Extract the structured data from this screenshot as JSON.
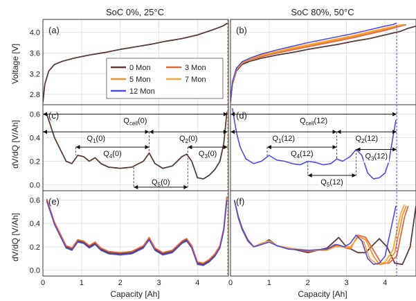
{
  "titles": {
    "left": "SoC 0%, 25°C",
    "right": "SoC 80%, 50°C"
  },
  "axes": {
    "voltage_ylabel": "Voltage [V]",
    "dvdq_ylabel": "dV/dQ [V/Ah]",
    "xlabel": "Capacity [Ah]"
  },
  "panel_labels": {
    "a": "(a)",
    "b": "(b)",
    "c": "(c)",
    "d": "(d)",
    "e": "(e)",
    "f": "(f)"
  },
  "legend": [
    {
      "name": "0 Mon",
      "color": "#5c3a36"
    },
    {
      "name": "3 Mon",
      "color": "#e8673a"
    },
    {
      "name": "5 Mon",
      "color": "#f0902e"
    },
    {
      "name": "7 Mon",
      "color": "#f6a83a"
    },
    {
      "name": "12 Mon",
      "color": "#4e4be0"
    }
  ],
  "annotations_left": {
    "qcell": "Q_cell(0)",
    "q1": "Q_1(0)",
    "q2": "Q_2(0)",
    "q3": "Q_3(0)",
    "q4": "Q_4(0)",
    "q5": "Q_5(0)"
  },
  "annotations_right": {
    "qcell": "Q_cell(12)",
    "q1": "Q_1(12)",
    "q2": "Q_2(12)",
    "q3": "Q_3(12)",
    "q4": "Q_4(12)",
    "q5": "Q_5(12)"
  },
  "chart_data": [
    {
      "type": "line",
      "panel": "(a)",
      "title": "SoC 0%, 25°C",
      "xlabel": "",
      "ylabel": "Voltage [V]",
      "xlim": [
        0,
        4.8
      ],
      "ylim": [
        2.6,
        4.25
      ],
      "xticks": [
        0,
        1,
        2,
        3,
        4
      ],
      "yticks": [
        2.8,
        3.2,
        3.6,
        4.0
      ],
      "grid": true,
      "legend_position": "center",
      "series": [
        {
          "name": "0 Mon",
          "x": [
            0,
            0.05,
            0.15,
            0.3,
            0.5,
            0.8,
            1.2,
            1.6,
            2.0,
            2.4,
            2.8,
            3.2,
            3.6,
            4.0,
            4.4,
            4.65,
            4.78
          ],
          "y": [
            2.65,
            3.0,
            3.25,
            3.38,
            3.44,
            3.5,
            3.56,
            3.61,
            3.67,
            3.72,
            3.77,
            3.83,
            3.88,
            3.95,
            4.05,
            4.12,
            4.18
          ]
        }
      ]
    },
    {
      "type": "line",
      "panel": "(b)",
      "title": "SoC 80%, 50°C",
      "xlabel": "",
      "ylabel": "",
      "xlim": [
        0,
        4.8
      ],
      "ylim": [
        2.6,
        4.25
      ],
      "xticks": [
        0,
        1,
        2,
        3,
        4
      ],
      "yticks": [
        2.8,
        3.2,
        3.6,
        4.0
      ],
      "grid": true,
      "series": [
        {
          "name": "0 Mon",
          "x": [
            0,
            0.05,
            0.15,
            0.3,
            0.5,
            0.8,
            1.2,
            1.6,
            2.0,
            2.4,
            2.8,
            3.2,
            3.6,
            4.0,
            4.4,
            4.6,
            4.8
          ],
          "y": [
            2.65,
            3.0,
            3.25,
            3.38,
            3.44,
            3.5,
            3.56,
            3.61,
            3.67,
            3.72,
            3.77,
            3.83,
            3.88,
            3.95,
            4.02,
            4.08,
            4.12
          ]
        },
        {
          "name": "3 Mon",
          "x": [
            0,
            0.05,
            0.15,
            0.3,
            0.5,
            0.8,
            1.2,
            1.6,
            2.0,
            2.4,
            2.8,
            3.2,
            3.6,
            4.0,
            4.3,
            4.55
          ],
          "y": [
            2.65,
            3.02,
            3.27,
            3.4,
            3.47,
            3.53,
            3.6,
            3.66,
            3.72,
            3.78,
            3.84,
            3.9,
            3.97,
            4.04,
            4.1,
            4.15
          ]
        },
        {
          "name": "5 Mon",
          "x": [
            0,
            0.05,
            0.15,
            0.3,
            0.5,
            0.8,
            1.2,
            1.6,
            2.0,
            2.4,
            2.8,
            3.2,
            3.6,
            4.0,
            4.3,
            4.5
          ],
          "y": [
            2.65,
            3.03,
            3.28,
            3.41,
            3.48,
            3.55,
            3.62,
            3.68,
            3.74,
            3.8,
            3.86,
            3.92,
            3.99,
            4.06,
            4.12,
            4.15
          ]
        },
        {
          "name": "7 Mon",
          "x": [
            0,
            0.05,
            0.15,
            0.3,
            0.5,
            0.8,
            1.2,
            1.6,
            2.0,
            2.4,
            2.8,
            3.2,
            3.6,
            4.0,
            4.25,
            4.45
          ],
          "y": [
            2.65,
            3.04,
            3.29,
            3.42,
            3.49,
            3.56,
            3.63,
            3.7,
            3.76,
            3.82,
            3.88,
            3.94,
            4.01,
            4.08,
            4.12,
            4.15
          ]
        },
        {
          "name": "12 Mon",
          "x": [
            0,
            0.05,
            0.15,
            0.3,
            0.5,
            0.8,
            1.2,
            1.6,
            2.0,
            2.4,
            2.8,
            3.2,
            3.6,
            4.0,
            4.2,
            4.3
          ],
          "y": [
            2.65,
            3.05,
            3.3,
            3.43,
            3.5,
            3.58,
            3.66,
            3.73,
            3.8,
            3.86,
            3.92,
            3.98,
            4.05,
            4.12,
            4.15,
            4.18
          ]
        }
      ]
    },
    {
      "type": "line",
      "panel": "(c)",
      "xlabel": "",
      "ylabel": "dV/dQ [V/Ah]",
      "xlim": [
        0,
        4.8
      ],
      "ylim": [
        -0.05,
        0.68
      ],
      "xticks": [
        0,
        1,
        2,
        3,
        4
      ],
      "yticks": [
        0.0,
        0.2,
        0.4,
        0.6
      ],
      "grid": true,
      "series": [
        {
          "name": "0 Mon",
          "x": [
            0.1,
            0.2,
            0.3,
            0.45,
            0.6,
            0.75,
            0.9,
            1.05,
            1.2,
            1.35,
            1.5,
            1.7,
            2.0,
            2.3,
            2.6,
            2.75,
            2.9,
            3.1,
            3.35,
            3.6,
            3.72,
            3.85,
            4.0,
            4.15,
            4.3,
            4.45,
            4.58,
            4.68,
            4.76
          ],
          "y": [
            0.6,
            0.5,
            0.4,
            0.3,
            0.2,
            0.18,
            0.25,
            0.24,
            0.2,
            0.23,
            0.18,
            0.15,
            0.14,
            0.15,
            0.2,
            0.27,
            0.18,
            0.14,
            0.16,
            0.24,
            0.26,
            0.2,
            0.06,
            0.05,
            0.08,
            0.13,
            0.2,
            0.35,
            0.62
          ]
        }
      ]
    },
    {
      "type": "line",
      "panel": "(d)",
      "xlabel": "",
      "ylabel": "",
      "xlim": [
        0,
        4.8
      ],
      "ylim": [
        -0.05,
        0.68
      ],
      "xticks": [
        0,
        1,
        2,
        3,
        4
      ],
      "yticks": [
        0.0,
        0.2,
        0.4,
        0.6
      ],
      "grid": true,
      "series": [
        {
          "name": "12 Mon",
          "x": [
            0.05,
            0.15,
            0.25,
            0.4,
            0.6,
            0.8,
            1.0,
            1.2,
            1.4,
            1.6,
            1.8,
            2.0,
            2.2,
            2.4,
            2.6,
            2.75,
            2.9,
            3.1,
            3.25,
            3.4,
            3.55,
            3.7,
            3.85,
            4.0,
            4.1,
            4.2,
            4.28
          ],
          "y": [
            0.65,
            0.45,
            0.32,
            0.22,
            0.18,
            0.2,
            0.25,
            0.21,
            0.2,
            0.18,
            0.17,
            0.2,
            0.19,
            0.17,
            0.18,
            0.22,
            0.2,
            0.24,
            0.3,
            0.25,
            0.1,
            0.05,
            0.06,
            0.1,
            0.2,
            0.4,
            0.55
          ]
        }
      ]
    },
    {
      "type": "line",
      "panel": "(e)",
      "xlabel": "Capacity [Ah]",
      "ylabel": "dV/dQ [V/Ah]",
      "xlim": [
        0,
        4.8
      ],
      "ylim": [
        -0.05,
        0.68
      ],
      "xticks": [
        0,
        1,
        2,
        3,
        4
      ],
      "yticks": [
        0.0,
        0.2,
        0.4,
        0.6
      ],
      "grid": true,
      "series": [
        {
          "name": "0 Mon",
          "x": [
            0.1,
            0.2,
            0.3,
            0.45,
            0.6,
            0.75,
            0.9,
            1.05,
            1.2,
            1.35,
            1.5,
            1.7,
            2.0,
            2.3,
            2.6,
            2.75,
            2.9,
            3.1,
            3.35,
            3.6,
            3.72,
            3.85,
            4.0,
            4.15,
            4.3,
            4.45,
            4.58,
            4.68,
            4.76
          ],
          "y": [
            0.6,
            0.5,
            0.4,
            0.3,
            0.2,
            0.18,
            0.25,
            0.24,
            0.2,
            0.23,
            0.18,
            0.15,
            0.14,
            0.15,
            0.2,
            0.27,
            0.18,
            0.14,
            0.16,
            0.24,
            0.26,
            0.2,
            0.06,
            0.05,
            0.08,
            0.13,
            0.2,
            0.35,
            0.62
          ]
        },
        {
          "name": "3 Mon",
          "x": [
            0.1,
            0.2,
            0.3,
            0.45,
            0.6,
            0.75,
            0.9,
            1.05,
            1.2,
            1.35,
            1.5,
            1.7,
            2.0,
            2.3,
            2.6,
            2.75,
            2.9,
            3.1,
            3.35,
            3.6,
            3.72,
            3.85,
            4.0,
            4.15,
            4.3,
            4.45,
            4.58,
            4.68,
            4.76
          ],
          "y": [
            0.61,
            0.51,
            0.41,
            0.31,
            0.21,
            0.19,
            0.26,
            0.25,
            0.21,
            0.24,
            0.19,
            0.16,
            0.15,
            0.16,
            0.21,
            0.28,
            0.19,
            0.15,
            0.17,
            0.25,
            0.27,
            0.21,
            0.07,
            0.06,
            0.09,
            0.14,
            0.21,
            0.36,
            0.63
          ]
        },
        {
          "name": "12 Mon",
          "x": [
            0.1,
            0.2,
            0.3,
            0.45,
            0.6,
            0.75,
            0.9,
            1.05,
            1.2,
            1.35,
            1.5,
            1.7,
            2.0,
            2.3,
            2.6,
            2.75,
            2.9,
            3.1,
            3.35,
            3.6,
            3.72,
            3.85,
            4.0,
            4.15,
            4.3,
            4.45,
            4.58,
            4.68,
            4.76
          ],
          "y": [
            0.59,
            0.49,
            0.39,
            0.29,
            0.19,
            0.17,
            0.24,
            0.23,
            0.19,
            0.22,
            0.17,
            0.14,
            0.13,
            0.14,
            0.19,
            0.26,
            0.17,
            0.13,
            0.15,
            0.23,
            0.25,
            0.19,
            0.05,
            0.04,
            0.07,
            0.12,
            0.19,
            0.34,
            0.6
          ]
        }
      ]
    },
    {
      "type": "line",
      "panel": "(f)",
      "xlabel": "Capacity [Ah]",
      "ylabel": "",
      "xlim": [
        0,
        4.8
      ],
      "ylim": [
        -0.05,
        0.68
      ],
      "xticks": [
        0,
        1,
        2,
        3,
        4
      ],
      "yticks": [
        0.0,
        0.2,
        0.4,
        0.6
      ],
      "grid": true,
      "series": [
        {
          "name": "0 Mon",
          "x": [
            0.1,
            0.2,
            0.3,
            0.45,
            0.6,
            0.8,
            1.0,
            1.2,
            1.5,
            2.0,
            2.5,
            2.8,
            3.0,
            3.3,
            3.5,
            3.7,
            3.85,
            4.05,
            4.25,
            4.45,
            4.65,
            4.8
          ],
          "y": [
            0.6,
            0.45,
            0.35,
            0.25,
            0.2,
            0.22,
            0.26,
            0.21,
            0.19,
            0.15,
            0.19,
            0.28,
            0.2,
            0.15,
            0.15,
            0.22,
            0.27,
            0.2,
            0.06,
            0.05,
            0.2,
            0.55
          ]
        },
        {
          "name": "3 Mon",
          "x": [
            0.1,
            0.2,
            0.3,
            0.45,
            0.6,
            0.8,
            1.0,
            1.2,
            1.5,
            2.0,
            2.5,
            2.7,
            2.9,
            3.1,
            3.3,
            3.5,
            3.7,
            3.9,
            4.1,
            4.3,
            4.5,
            4.6
          ],
          "y": [
            0.6,
            0.46,
            0.36,
            0.26,
            0.2,
            0.23,
            0.25,
            0.21,
            0.19,
            0.16,
            0.18,
            0.22,
            0.2,
            0.18,
            0.3,
            0.28,
            0.17,
            0.06,
            0.06,
            0.12,
            0.45,
            0.55
          ]
        },
        {
          "name": "5 Mon",
          "x": [
            0.1,
            0.2,
            0.3,
            0.45,
            0.6,
            0.8,
            1.0,
            1.2,
            1.5,
            2.0,
            2.5,
            2.7,
            2.9,
            3.1,
            3.3,
            3.5,
            3.7,
            3.85,
            4.05,
            4.25,
            4.45,
            4.55
          ],
          "y": [
            0.6,
            0.46,
            0.36,
            0.26,
            0.2,
            0.23,
            0.25,
            0.21,
            0.19,
            0.17,
            0.17,
            0.21,
            0.2,
            0.19,
            0.29,
            0.26,
            0.12,
            0.05,
            0.06,
            0.15,
            0.47,
            0.55
          ]
        },
        {
          "name": "7 Mon",
          "x": [
            0.1,
            0.2,
            0.3,
            0.45,
            0.6,
            0.8,
            1.0,
            1.2,
            1.5,
            2.0,
            2.5,
            2.7,
            2.9,
            3.1,
            3.3,
            3.45,
            3.6,
            3.8,
            4.0,
            4.2,
            4.4,
            4.5
          ],
          "y": [
            0.6,
            0.46,
            0.36,
            0.26,
            0.2,
            0.23,
            0.25,
            0.21,
            0.19,
            0.17,
            0.17,
            0.2,
            0.2,
            0.2,
            0.28,
            0.24,
            0.1,
            0.05,
            0.07,
            0.17,
            0.48,
            0.56
          ]
        },
        {
          "name": "12 Mon",
          "x": [
            0.1,
            0.2,
            0.3,
            0.45,
            0.6,
            0.8,
            1.0,
            1.2,
            1.5,
            2.0,
            2.5,
            2.75,
            2.95,
            3.1,
            3.25,
            3.4,
            3.55,
            3.7,
            3.85,
            4.0,
            4.15,
            4.28
          ],
          "y": [
            0.6,
            0.46,
            0.36,
            0.26,
            0.2,
            0.22,
            0.24,
            0.21,
            0.18,
            0.17,
            0.18,
            0.22,
            0.2,
            0.23,
            0.3,
            0.25,
            0.1,
            0.05,
            0.06,
            0.12,
            0.35,
            0.55
          ]
        }
      ]
    }
  ]
}
